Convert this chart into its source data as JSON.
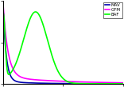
{
  "legend_labels": [
    "BAF",
    "GFM",
    "MAV"
  ],
  "legend_colors": [
    "#00ff00",
    "#ff00ff",
    "#0000b0"
  ],
  "background_color": "#ffffff",
  "line_width": 1.2,
  "figsize": [
    1.56,
    1.1
  ],
  "dpi": 100
}
